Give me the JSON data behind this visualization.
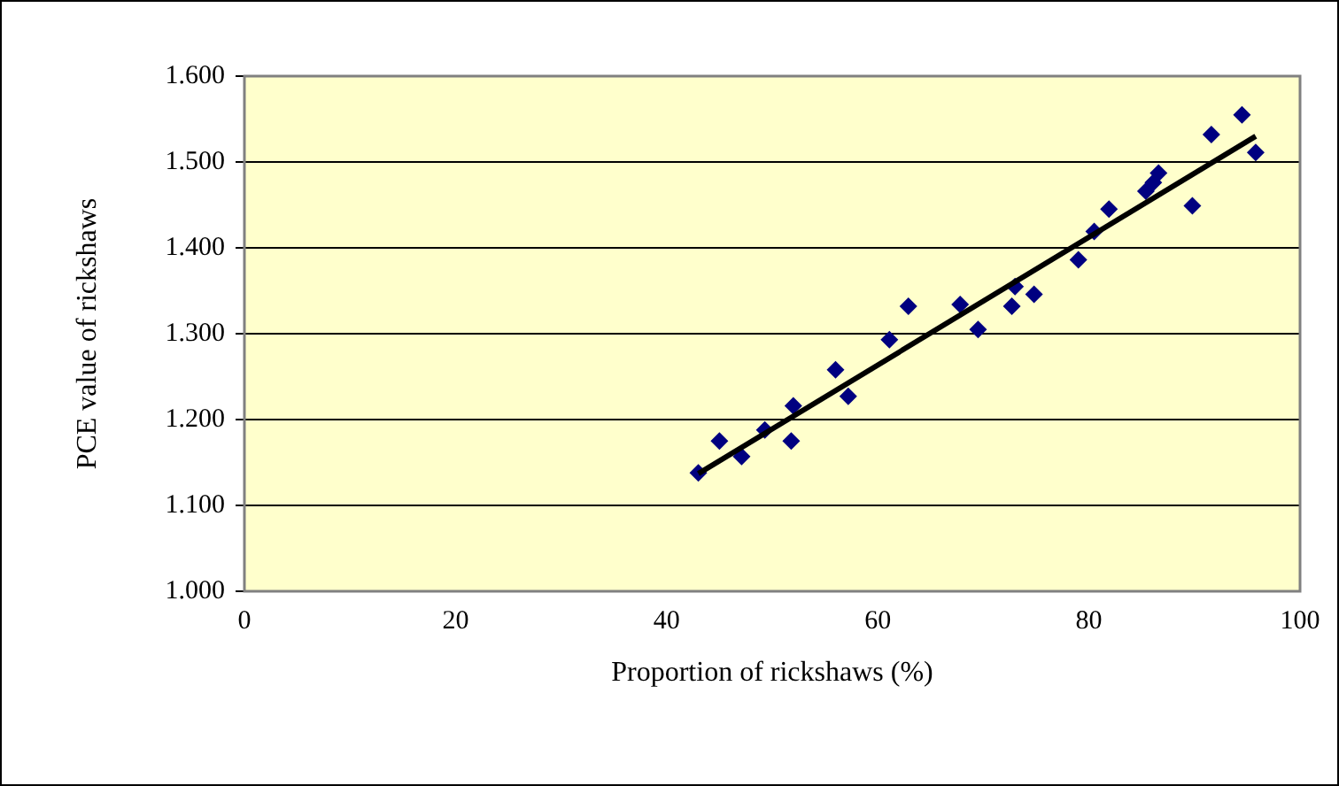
{
  "chart_data": {
    "type": "scatter",
    "xlabel": "Proportion of rickshaws (%)",
    "ylabel": "PCE value of rickshaws",
    "xlim": [
      0,
      100
    ],
    "xticks": [
      0,
      20,
      40,
      60,
      80,
      100
    ],
    "ylim": [
      1.0,
      1.6
    ],
    "yticks": [
      {
        "value": 1.0,
        "label": "1.000"
      },
      {
        "value": 1.1,
        "label": "1.100"
      },
      {
        "value": 1.2,
        "label": "1.200"
      },
      {
        "value": 1.3,
        "label": "1.300"
      },
      {
        "value": 1.4,
        "label": "1.400"
      },
      {
        "value": 1.5,
        "label": "1.500"
      },
      {
        "value": 1.6,
        "label": "1.600"
      }
    ],
    "grid": "y",
    "legend": false,
    "series": [
      {
        "color": "#000080",
        "marker": "diamond",
        "x": [
          43.0,
          45.0,
          47.1,
          49.3,
          52.0,
          51.8,
          56.0,
          57.2,
          61.1,
          62.9,
          67.8,
          69.5,
          72.7,
          73.0,
          74.8,
          79.0,
          80.5,
          81.9,
          85.4,
          86.1,
          86.6,
          89.8,
          91.6,
          94.5,
          95.8
        ],
        "values": [
          1.138,
          1.175,
          1.157,
          1.188,
          1.216,
          1.175,
          1.258,
          1.227,
          1.293,
          1.332,
          1.334,
          1.305,
          1.332,
          1.355,
          1.346,
          1.386,
          1.419,
          1.445,
          1.466,
          1.476,
          1.487,
          1.449,
          1.532,
          1.555,
          1.511
        ]
      },
      {
        "type": "line",
        "color": "#000000",
        "marker": "none",
        "x": [
          43.0,
          95.8
        ],
        "values": [
          1.137,
          1.53
        ]
      }
    ]
  }
}
